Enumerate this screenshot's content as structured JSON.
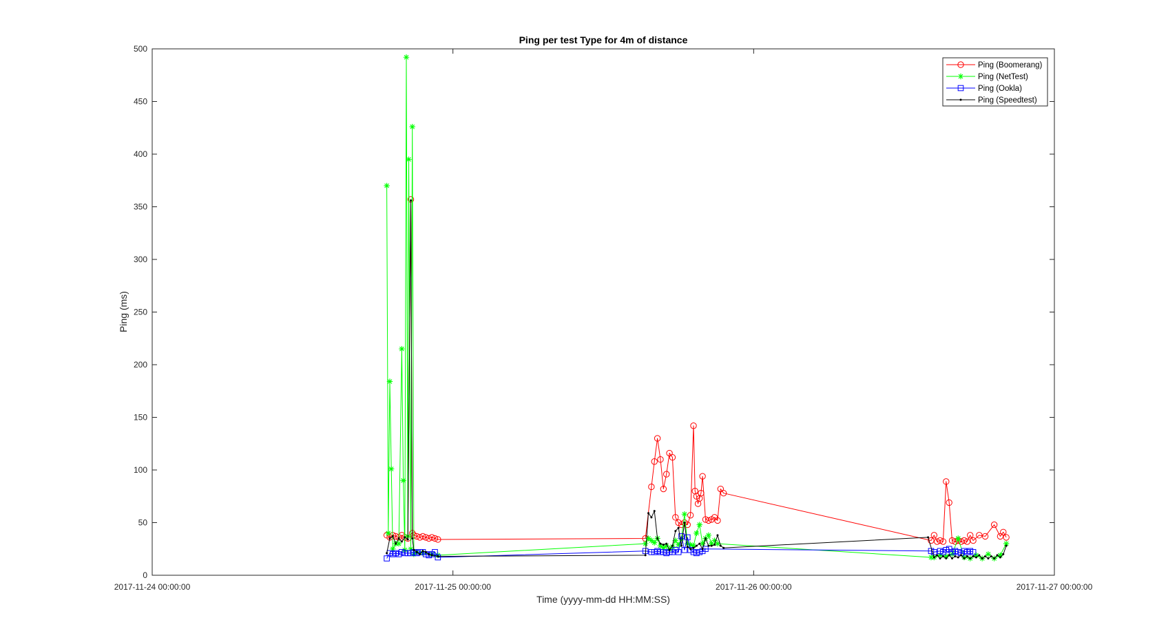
{
  "chart_data": {
    "type": "line",
    "title": "Ping per test Type for 4m of distance",
    "xlabel": "Time (yyyy-mm-dd HH:MM:SS)",
    "ylabel": "Ping (ms)",
    "x_unit": "day offset from 2017-11-24 00:00:00",
    "xlim": [
      0,
      3
    ],
    "ylim": [
      0,
      500
    ],
    "xticks": [
      0,
      1,
      2,
      3
    ],
    "xtick_labels": [
      "2017-11-24 00:00:00",
      "2017-11-25 00:00:00",
      "2017-11-26 00:00:00",
      "2017-11-27 00:00:00"
    ],
    "yticks": [
      0,
      50,
      100,
      150,
      200,
      250,
      300,
      350,
      400,
      450,
      500
    ],
    "ytick_labels": [
      "0",
      "50",
      "100",
      "150",
      "200",
      "250",
      "300",
      "350",
      "400",
      "450",
      "500"
    ],
    "grid": false,
    "legend_position": "top-right",
    "series": [
      {
        "name": "Ping (Boomerang)",
        "color": "#ff0000",
        "marker": "circle",
        "points": [
          [
            0.78,
            38
          ],
          [
            0.79,
            36
          ],
          [
            0.8,
            38
          ],
          [
            0.81,
            37
          ],
          [
            0.82,
            36
          ],
          [
            0.83,
            38
          ],
          [
            0.84,
            36
          ],
          [
            0.85,
            35
          ],
          [
            0.86,
            357
          ],
          [
            0.865,
            40
          ],
          [
            0.87,
            38
          ],
          [
            0.88,
            37
          ],
          [
            0.89,
            36
          ],
          [
            0.9,
            37
          ],
          [
            0.91,
            36
          ],
          [
            0.92,
            35
          ],
          [
            0.93,
            36
          ],
          [
            0.94,
            35
          ],
          [
            0.95,
            34
          ],
          [
            1.64,
            35
          ],
          [
            1.66,
            84
          ],
          [
            1.67,
            108
          ],
          [
            1.68,
            130
          ],
          [
            1.69,
            110
          ],
          [
            1.7,
            82
          ],
          [
            1.71,
            96
          ],
          [
            1.72,
            116
          ],
          [
            1.73,
            112
          ],
          [
            1.74,
            55
          ],
          [
            1.75,
            50
          ],
          [
            1.76,
            48
          ],
          [
            1.77,
            50
          ],
          [
            1.78,
            48
          ],
          [
            1.79,
            57
          ],
          [
            1.8,
            142
          ],
          [
            1.805,
            80
          ],
          [
            1.81,
            75
          ],
          [
            1.815,
            68
          ],
          [
            1.82,
            73
          ],
          [
            1.825,
            78
          ],
          [
            1.83,
            94
          ],
          [
            1.84,
            53
          ],
          [
            1.85,
            52
          ],
          [
            1.86,
            53
          ],
          [
            1.87,
            55
          ],
          [
            1.88,
            52
          ],
          [
            1.89,
            82
          ],
          [
            1.9,
            78
          ],
          [
            2.59,
            33
          ],
          [
            2.6,
            38
          ],
          [
            2.61,
            32
          ],
          [
            2.62,
            33
          ],
          [
            2.63,
            32
          ],
          [
            2.64,
            89
          ],
          [
            2.65,
            69
          ],
          [
            2.66,
            33
          ],
          [
            2.67,
            32
          ],
          [
            2.68,
            33
          ],
          [
            2.69,
            32
          ],
          [
            2.7,
            33
          ],
          [
            2.71,
            32
          ],
          [
            2.72,
            38
          ],
          [
            2.73,
            33
          ],
          [
            2.75,
            38
          ],
          [
            2.77,
            37
          ],
          [
            2.8,
            48
          ],
          [
            2.82,
            37
          ],
          [
            2.83,
            41
          ],
          [
            2.84,
            36
          ]
        ]
      },
      {
        "name": "Ping (NetTest)",
        "color": "#00ff00",
        "marker": "asterisk",
        "points": [
          [
            0.78,
            370
          ],
          [
            0.785,
            40
          ],
          [
            0.79,
            184
          ],
          [
            0.795,
            101
          ],
          [
            0.8,
            25
          ],
          [
            0.81,
            30
          ],
          [
            0.82,
            30
          ],
          [
            0.83,
            215
          ],
          [
            0.835,
            90
          ],
          [
            0.84,
            24
          ],
          [
            0.845,
            492
          ],
          [
            0.85,
            37
          ],
          [
            0.853,
            395
          ],
          [
            0.86,
            25
          ],
          [
            0.865,
            426
          ],
          [
            0.87,
            20
          ],
          [
            0.88,
            22
          ],
          [
            0.9,
            21
          ],
          [
            0.93,
            20
          ],
          [
            0.95,
            19
          ],
          [
            1.64,
            30
          ],
          [
            1.65,
            35
          ],
          [
            1.66,
            33
          ],
          [
            1.67,
            31
          ],
          [
            1.68,
            35
          ],
          [
            1.69,
            28
          ],
          [
            1.7,
            26
          ],
          [
            1.71,
            28
          ],
          [
            1.72,
            25
          ],
          [
            1.73,
            27
          ],
          [
            1.74,
            33
          ],
          [
            1.75,
            29
          ],
          [
            1.76,
            35
          ],
          [
            1.77,
            58
          ],
          [
            1.78,
            30
          ],
          [
            1.79,
            29
          ],
          [
            1.8,
            28
          ],
          [
            1.81,
            40
          ],
          [
            1.82,
            48
          ],
          [
            1.83,
            30
          ],
          [
            1.84,
            35
          ],
          [
            1.85,
            38
          ],
          [
            1.86,
            30
          ],
          [
            1.87,
            33
          ],
          [
            1.88,
            30
          ],
          [
            2.59,
            17
          ],
          [
            2.6,
            17
          ],
          [
            2.62,
            19
          ],
          [
            2.64,
            18
          ],
          [
            2.66,
            20
          ],
          [
            2.68,
            35
          ],
          [
            2.7,
            17
          ],
          [
            2.72,
            16
          ],
          [
            2.74,
            19
          ],
          [
            2.76,
            16
          ],
          [
            2.78,
            20
          ],
          [
            2.8,
            16
          ],
          [
            2.82,
            19
          ],
          [
            2.84,
            30
          ]
        ]
      },
      {
        "name": "Ping (Ookla)",
        "color": "#0000ff",
        "marker": "square",
        "points": [
          [
            0.78,
            16
          ],
          [
            0.79,
            21
          ],
          [
            0.8,
            20
          ],
          [
            0.81,
            21
          ],
          [
            0.82,
            20
          ],
          [
            0.83,
            22
          ],
          [
            0.84,
            21
          ],
          [
            0.85,
            21
          ],
          [
            0.86,
            21
          ],
          [
            0.87,
            22
          ],
          [
            0.88,
            21
          ],
          [
            0.89,
            22
          ],
          [
            0.9,
            22
          ],
          [
            0.91,
            20
          ],
          [
            0.92,
            19
          ],
          [
            0.93,
            20
          ],
          [
            0.94,
            22
          ],
          [
            0.95,
            17
          ],
          [
            1.64,
            23
          ],
          [
            1.66,
            22
          ],
          [
            1.67,
            22
          ],
          [
            1.68,
            23
          ],
          [
            1.69,
            22
          ],
          [
            1.7,
            22
          ],
          [
            1.71,
            21
          ],
          [
            1.72,
            22
          ],
          [
            1.73,
            22
          ],
          [
            1.74,
            24
          ],
          [
            1.75,
            22
          ],
          [
            1.76,
            37
          ],
          [
            1.77,
            24
          ],
          [
            1.78,
            36
          ],
          [
            1.79,
            24
          ],
          [
            1.8,
            22
          ],
          [
            1.81,
            21
          ],
          [
            1.82,
            22
          ],
          [
            1.83,
            23
          ],
          [
            1.84,
            25
          ],
          [
            2.59,
            23
          ],
          [
            2.6,
            22
          ],
          [
            2.62,
            23
          ],
          [
            2.63,
            22
          ],
          [
            2.64,
            24
          ],
          [
            2.65,
            25
          ],
          [
            2.66,
            22
          ],
          [
            2.67,
            23
          ],
          [
            2.68,
            22
          ],
          [
            2.69,
            21
          ],
          [
            2.7,
            23
          ],
          [
            2.71,
            22
          ],
          [
            2.72,
            23
          ],
          [
            2.73,
            22
          ]
        ]
      },
      {
        "name": "Ping (Speedtest)",
        "color": "#000000",
        "marker": "point",
        "points": [
          [
            0.78,
            21
          ],
          [
            0.79,
            35
          ],
          [
            0.8,
            37
          ],
          [
            0.81,
            30
          ],
          [
            0.82,
            35
          ],
          [
            0.83,
            32
          ],
          [
            0.84,
            36
          ],
          [
            0.85,
            34
          ],
          [
            0.86,
            356
          ],
          [
            0.865,
            35
          ],
          [
            0.87,
            24
          ],
          [
            0.88,
            22
          ],
          [
            0.89,
            20
          ],
          [
            0.9,
            23
          ],
          [
            0.91,
            22
          ],
          [
            0.92,
            20
          ],
          [
            0.93,
            19
          ],
          [
            0.95,
            18
          ],
          [
            1.64,
            19
          ],
          [
            1.65,
            59
          ],
          [
            1.66,
            55
          ],
          [
            1.67,
            61
          ],
          [
            1.68,
            35
          ],
          [
            1.69,
            30
          ],
          [
            1.7,
            29
          ],
          [
            1.71,
            30
          ],
          [
            1.72,
            24
          ],
          [
            1.73,
            28
          ],
          [
            1.74,
            42
          ],
          [
            1.75,
            45
          ],
          [
            1.76,
            28
          ],
          [
            1.77,
            50
          ],
          [
            1.78,
            27
          ],
          [
            1.79,
            25
          ],
          [
            1.8,
            26
          ],
          [
            1.81,
            28
          ],
          [
            1.82,
            30
          ],
          [
            1.83,
            25
          ],
          [
            1.84,
            35
          ],
          [
            1.85,
            28
          ],
          [
            1.86,
            28
          ],
          [
            1.87,
            29
          ],
          [
            1.88,
            38
          ],
          [
            1.89,
            28
          ],
          [
            1.9,
            26
          ],
          [
            2.58,
            36
          ],
          [
            2.6,
            17
          ],
          [
            2.61,
            19
          ],
          [
            2.62,
            16
          ],
          [
            2.63,
            18
          ],
          [
            2.64,
            16
          ],
          [
            2.65,
            19
          ],
          [
            2.66,
            16
          ],
          [
            2.67,
            18
          ],
          [
            2.68,
            17
          ],
          [
            2.69,
            19
          ],
          [
            2.7,
            16
          ],
          [
            2.71,
            18
          ],
          [
            2.72,
            16
          ],
          [
            2.73,
            18
          ],
          [
            2.74,
            17
          ],
          [
            2.75,
            19
          ],
          [
            2.76,
            16
          ],
          [
            2.77,
            18
          ],
          [
            2.78,
            16
          ],
          [
            2.79,
            18
          ],
          [
            2.8,
            16
          ],
          [
            2.81,
            19
          ],
          [
            2.82,
            17
          ],
          [
            2.83,
            20
          ],
          [
            2.84,
            28
          ]
        ]
      }
    ]
  }
}
